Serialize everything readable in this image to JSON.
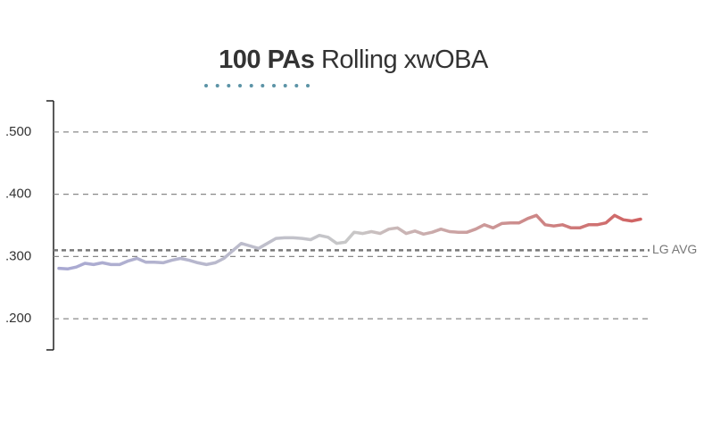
{
  "chart_data": {
    "type": "line",
    "title_emphasis": "100 PAs",
    "title": "Rolling xwOBA",
    "values": [
      0.281,
      0.28,
      0.283,
      0.289,
      0.287,
      0.29,
      0.287,
      0.287,
      0.293,
      0.297,
      0.291,
      0.291,
      0.29,
      0.294,
      0.297,
      0.294,
      0.29,
      0.287,
      0.29,
      0.297,
      0.309,
      0.321,
      0.317,
      0.313,
      0.321,
      0.329,
      0.33,
      0.33,
      0.329,
      0.327,
      0.334,
      0.331,
      0.321,
      0.323,
      0.339,
      0.337,
      0.34,
      0.337,
      0.344,
      0.346,
      0.337,
      0.341,
      0.336,
      0.339,
      0.344,
      0.34,
      0.339,
      0.339,
      0.344,
      0.351,
      0.346,
      0.353,
      0.354,
      0.354,
      0.361,
      0.366,
      0.351,
      0.349,
      0.351,
      0.346,
      0.346,
      0.351,
      0.351,
      0.354,
      0.366,
      0.359,
      0.357,
      0.36
    ],
    "colors": [
      "#a8a8d2",
      "#c8c8c8",
      "#d06262"
    ],
    "ylim": [
      0.15,
      0.55
    ],
    "yticks": [
      {
        "value": 0.2,
        "label": ".200"
      },
      {
        "value": 0.3,
        "label": ".300"
      },
      {
        "value": 0.4,
        "label": ".400"
      },
      {
        "value": 0.5,
        "label": ".500"
      }
    ],
    "grid": true,
    "reference_line": {
      "value": 0.31,
      "label": "LG AVG"
    }
  }
}
